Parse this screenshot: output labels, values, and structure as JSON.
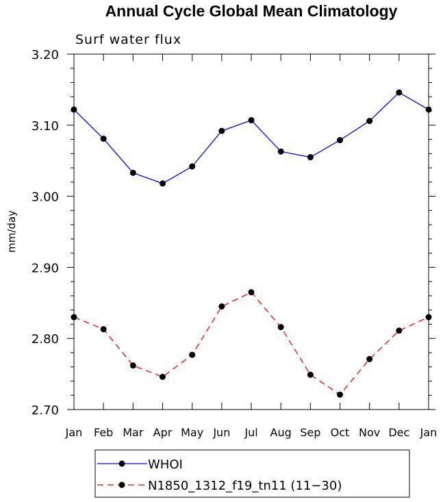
{
  "chart_data": {
    "type": "line",
    "title": "Annual Cycle Global Mean Climatology",
    "subtitle": "Surf water flux",
    "xlabel": "",
    "ylabel": "mm/day",
    "categories": [
      "Jan",
      "Feb",
      "Mar",
      "Apr",
      "May",
      "Jun",
      "Jul",
      "Aug",
      "Sep",
      "Oct",
      "Nov",
      "Dec",
      "Jan"
    ],
    "ylim": [
      2.7,
      3.2
    ],
    "yticks": [
      2.7,
      2.8,
      2.9,
      3.0,
      3.1,
      3.2
    ],
    "ytick_labels": [
      "2.70",
      "2.80",
      "2.90",
      "3.00",
      "3.10",
      "3.20"
    ],
    "series": [
      {
        "name": "WHOI",
        "color": "#0000ff",
        "dash": "solid",
        "values": [
          3.122,
          3.081,
          3.033,
          3.018,
          3.042,
          3.092,
          3.107,
          3.063,
          3.055,
          3.079,
          3.106,
          3.146,
          3.122
        ]
      },
      {
        "name": "N1850_1312_f19_tn11 (11-30)",
        "color": "#ff0000",
        "dash": "dashed",
        "values": [
          2.83,
          2.813,
          2.762,
          2.746,
          2.777,
          2.845,
          2.865,
          2.816,
          2.749,
          2.721,
          2.771,
          2.811,
          2.83
        ]
      }
    ],
    "legend": {
      "placement": "bottom",
      "entries": [
        "WHOI",
        "N1850_1312_f19_tn11 (11−30)"
      ]
    },
    "grid": false
  }
}
